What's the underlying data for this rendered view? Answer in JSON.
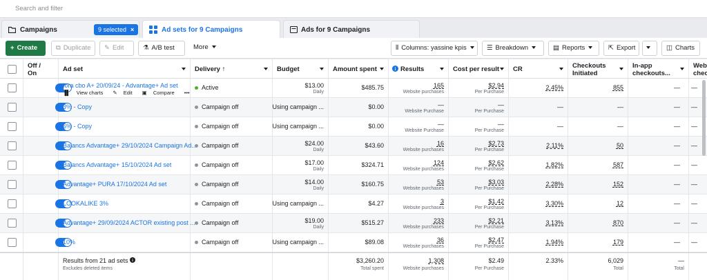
{
  "search": {
    "placeholder": "Search and filter"
  },
  "tabs": {
    "campaigns": {
      "label": "Campaigns",
      "selected": "9 selected"
    },
    "adsets": {
      "label": "Ad sets for 9 Campaigns"
    },
    "ads": {
      "label": "Ads for 9 Campaigns"
    }
  },
  "toolbar": {
    "create": "Create",
    "duplicate": "Duplicate",
    "edit": "Edit",
    "ab_test": "A/B test",
    "more": "More",
    "columns": "Columns: yassine kpis",
    "breakdown": "Breakdown",
    "reports": "Reports",
    "export": "Export",
    "charts": "Charts"
  },
  "headers": {
    "offon": "Off / On",
    "adset": "Ad set",
    "delivery": "Delivery ↑",
    "budget": "Budget",
    "amount": "Amount spent",
    "results": "Results",
    "cpr": "Cost per result",
    "cr": "CR",
    "checkouts": "Checkouts Initiated",
    "inapp": "In-app checkouts...",
    "web": "Web chec..."
  },
  "row_actions": {
    "view_charts": "View charts",
    "edit": "Edit",
    "compare": "Compare",
    "more": "•••"
  },
  "rows": [
    {
      "name": "Iora cbo A+ 20/09/24 - Advantage+ Ad set",
      "delivery": "Active",
      "active": true,
      "budget": "$13.00",
      "budget_sub": "Daily",
      "amount": "$485.75",
      "results": "165",
      "results_sub": "Website purchases",
      "cpr": "$2.94",
      "cpr_sub": "Per Purchase",
      "cr": "2.45%",
      "checkouts": "855",
      "inapp": "—",
      "web": "—"
    },
    {
      "name": "3% - Copy",
      "delivery": "Campaign off",
      "active": false,
      "budget": "Using campaign ...",
      "budget_sub": "",
      "amount": "$0.00",
      "results": "—",
      "results_sub": "Website Purchase",
      "cpr": "—",
      "cpr_sub": "Per Purchase",
      "cr": "—",
      "checkouts": "—",
      "inapp": "—",
      "web": "—"
    },
    {
      "name": "6% - Copy",
      "delivery": "Campaign off",
      "active": false,
      "budget": "Using campaign ...",
      "budget_sub": "",
      "amount": "$0.00",
      "results": "—",
      "results_sub": "Website Purchase",
      "cpr": "—",
      "cpr_sub": "Per Purchase",
      "cr": "—",
      "checkouts": "—",
      "inapp": "—",
      "web": "—"
    },
    {
      "name": "Balancs Advantage+ 29/10/2024 Campaign Ad...",
      "delivery": "Campaign off",
      "active": false,
      "budget": "$24.00",
      "budget_sub": "Daily",
      "amount": "$43.60",
      "results": "16",
      "results_sub": "Website purchases",
      "cpr": "$2.73",
      "cpr_sub": "Per Purchase",
      "cr": "2.11%",
      "checkouts": "50",
      "inapp": "—",
      "web": "—"
    },
    {
      "name": "Balancs Advantage+ 15/10/2024 Ad set",
      "delivery": "Campaign off",
      "active": false,
      "budget": "$17.00",
      "budget_sub": "Daily",
      "amount": "$324.71",
      "results": "124",
      "results_sub": "Website purchases",
      "cpr": "$2.62",
      "cpr_sub": "Per Purchase",
      "cr": "1.82%",
      "checkouts": "587",
      "inapp": "—",
      "web": "—"
    },
    {
      "name": "Advantage+ PURA 17/10/2024 Ad set",
      "delivery": "Campaign off",
      "active": false,
      "budget": "$14.00",
      "budget_sub": "Daily",
      "amount": "$160.75",
      "results": "53",
      "results_sub": "Website purchases",
      "cpr": "$3.03",
      "cpr_sub": "Per Purchase",
      "cr": "2.28%",
      "checkouts": "152",
      "inapp": "—",
      "web": "—"
    },
    {
      "name": "LOOKALIKE 3%",
      "delivery": "Campaign off",
      "active": false,
      "budget": "Using campaign ...",
      "budget_sub": "",
      "amount": "$4.27",
      "results": "3",
      "results_sub": "Website purchases",
      "cpr": "$1.42",
      "cpr_sub": "Per Purchase",
      "cr": "3.30%",
      "checkouts": "12",
      "inapp": "—",
      "web": "—"
    },
    {
      "name": "Advantage+ 29/09/2024 ACTOR existing post ...",
      "delivery": "Campaign off",
      "active": false,
      "budget": "$19.00",
      "budget_sub": "Daily",
      "amount": "$515.27",
      "results": "233",
      "results_sub": "Website purchases",
      "cpr": "$2.21",
      "cpr_sub": "Per Purchase",
      "cr": "3.13%",
      "checkouts": "870",
      "inapp": "—",
      "web": "—"
    },
    {
      "name": "10%",
      "delivery": "Campaign off",
      "active": false,
      "budget": "Using campaign ...",
      "budget_sub": "",
      "amount": "$89.08",
      "results": "36",
      "results_sub": "Website purchases",
      "cpr": "$2.47",
      "cpr_sub": "Per Purchase",
      "cr": "1.94%",
      "checkouts": "179",
      "inapp": "—",
      "web": "—"
    }
  ],
  "footer": {
    "label": "Results from 21 ad sets",
    "sub": "Excludes deleted items",
    "amount": "$3,260.20",
    "amount_sub": "Total spent",
    "results": "1,308",
    "results_sub": "Website purchases",
    "cpr": "$2.49",
    "cpr_sub": "Per Purchase",
    "cr": "2.33%",
    "checkouts": "6,029",
    "checkouts_sub": "Total",
    "inapp": "—",
    "inapp_sub": "Total"
  },
  "colors": {
    "accent": "#1b74e4",
    "create": "#1f7a45",
    "active_dot": "#42b72a"
  }
}
